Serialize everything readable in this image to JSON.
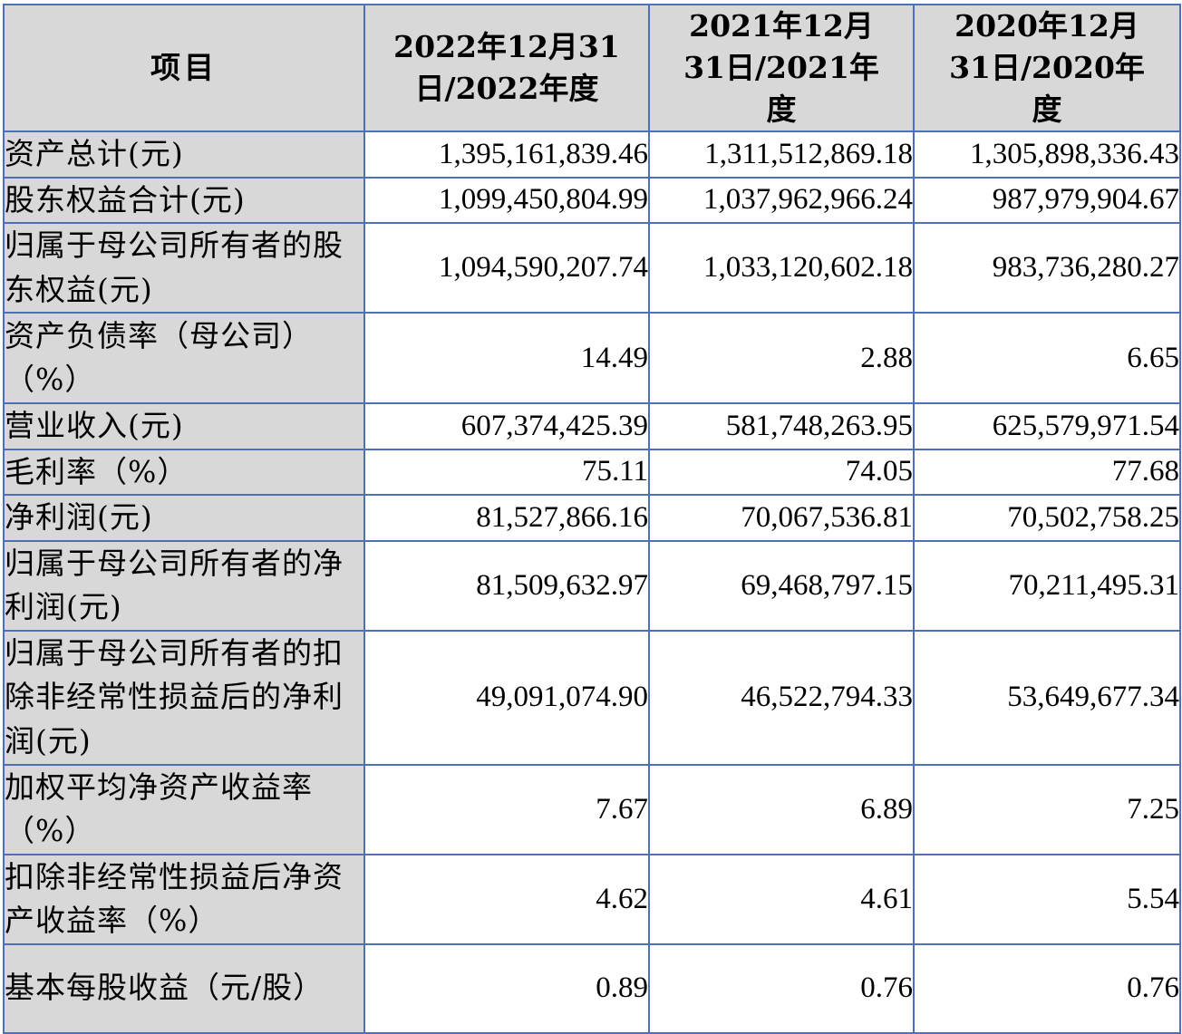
{
  "table": {
    "headers": [
      "项目",
      "2022年12月31日/2022年度",
      "2021年12月31日/2021年度",
      "2020年12月31日/2020年度"
    ],
    "rows": [
      {
        "label": "资产总计(元)",
        "values": [
          "1,395,161,839.46",
          "1,311,512,869.18",
          "1,305,898,336.43"
        ]
      },
      {
        "label": "股东权益合计(元)",
        "values": [
          "1,099,450,804.99",
          "1,037,962,966.24",
          "987,979,904.67"
        ]
      },
      {
        "label": "归属于母公司所有者的股东权益(元)",
        "values": [
          "1,094,590,207.74",
          "1,033,120,602.18",
          "983,736,280.27"
        ]
      },
      {
        "label": "资产负债率（母公司）（%）",
        "values": [
          "14.49",
          "2.88",
          "6.65"
        ]
      },
      {
        "label": "营业收入(元)",
        "values": [
          "607,374,425.39",
          "581,748,263.95",
          "625,579,971.54"
        ]
      },
      {
        "label": "毛利率（%）",
        "values": [
          "75.11",
          "74.05",
          "77.68"
        ]
      },
      {
        "label": "净利润(元)",
        "values": [
          "81,527,866.16",
          "70,067,536.81",
          "70,502,758.25"
        ]
      },
      {
        "label": "归属于母公司所有者的净利润(元)",
        "values": [
          "81,509,632.97",
          "69,468,797.15",
          "70,211,495.31"
        ]
      },
      {
        "label": "归属于母公司所有者的扣除非经常性损益后的净利润(元)",
        "values": [
          "49,091,074.90",
          "46,522,794.33",
          "53,649,677.34"
        ]
      },
      {
        "label": "加权平均净资产收益率（%）",
        "values": [
          "7.67",
          "6.89",
          "7.25"
        ]
      },
      {
        "label": "扣除非经常性损益后净资产收益率（%）",
        "values": [
          "4.62",
          "4.61",
          "5.54"
        ]
      },
      {
        "label": "基本每股收益（元/股）",
        "values": [
          "0.89",
          "0.76",
          "0.76"
        ]
      }
    ]
  }
}
